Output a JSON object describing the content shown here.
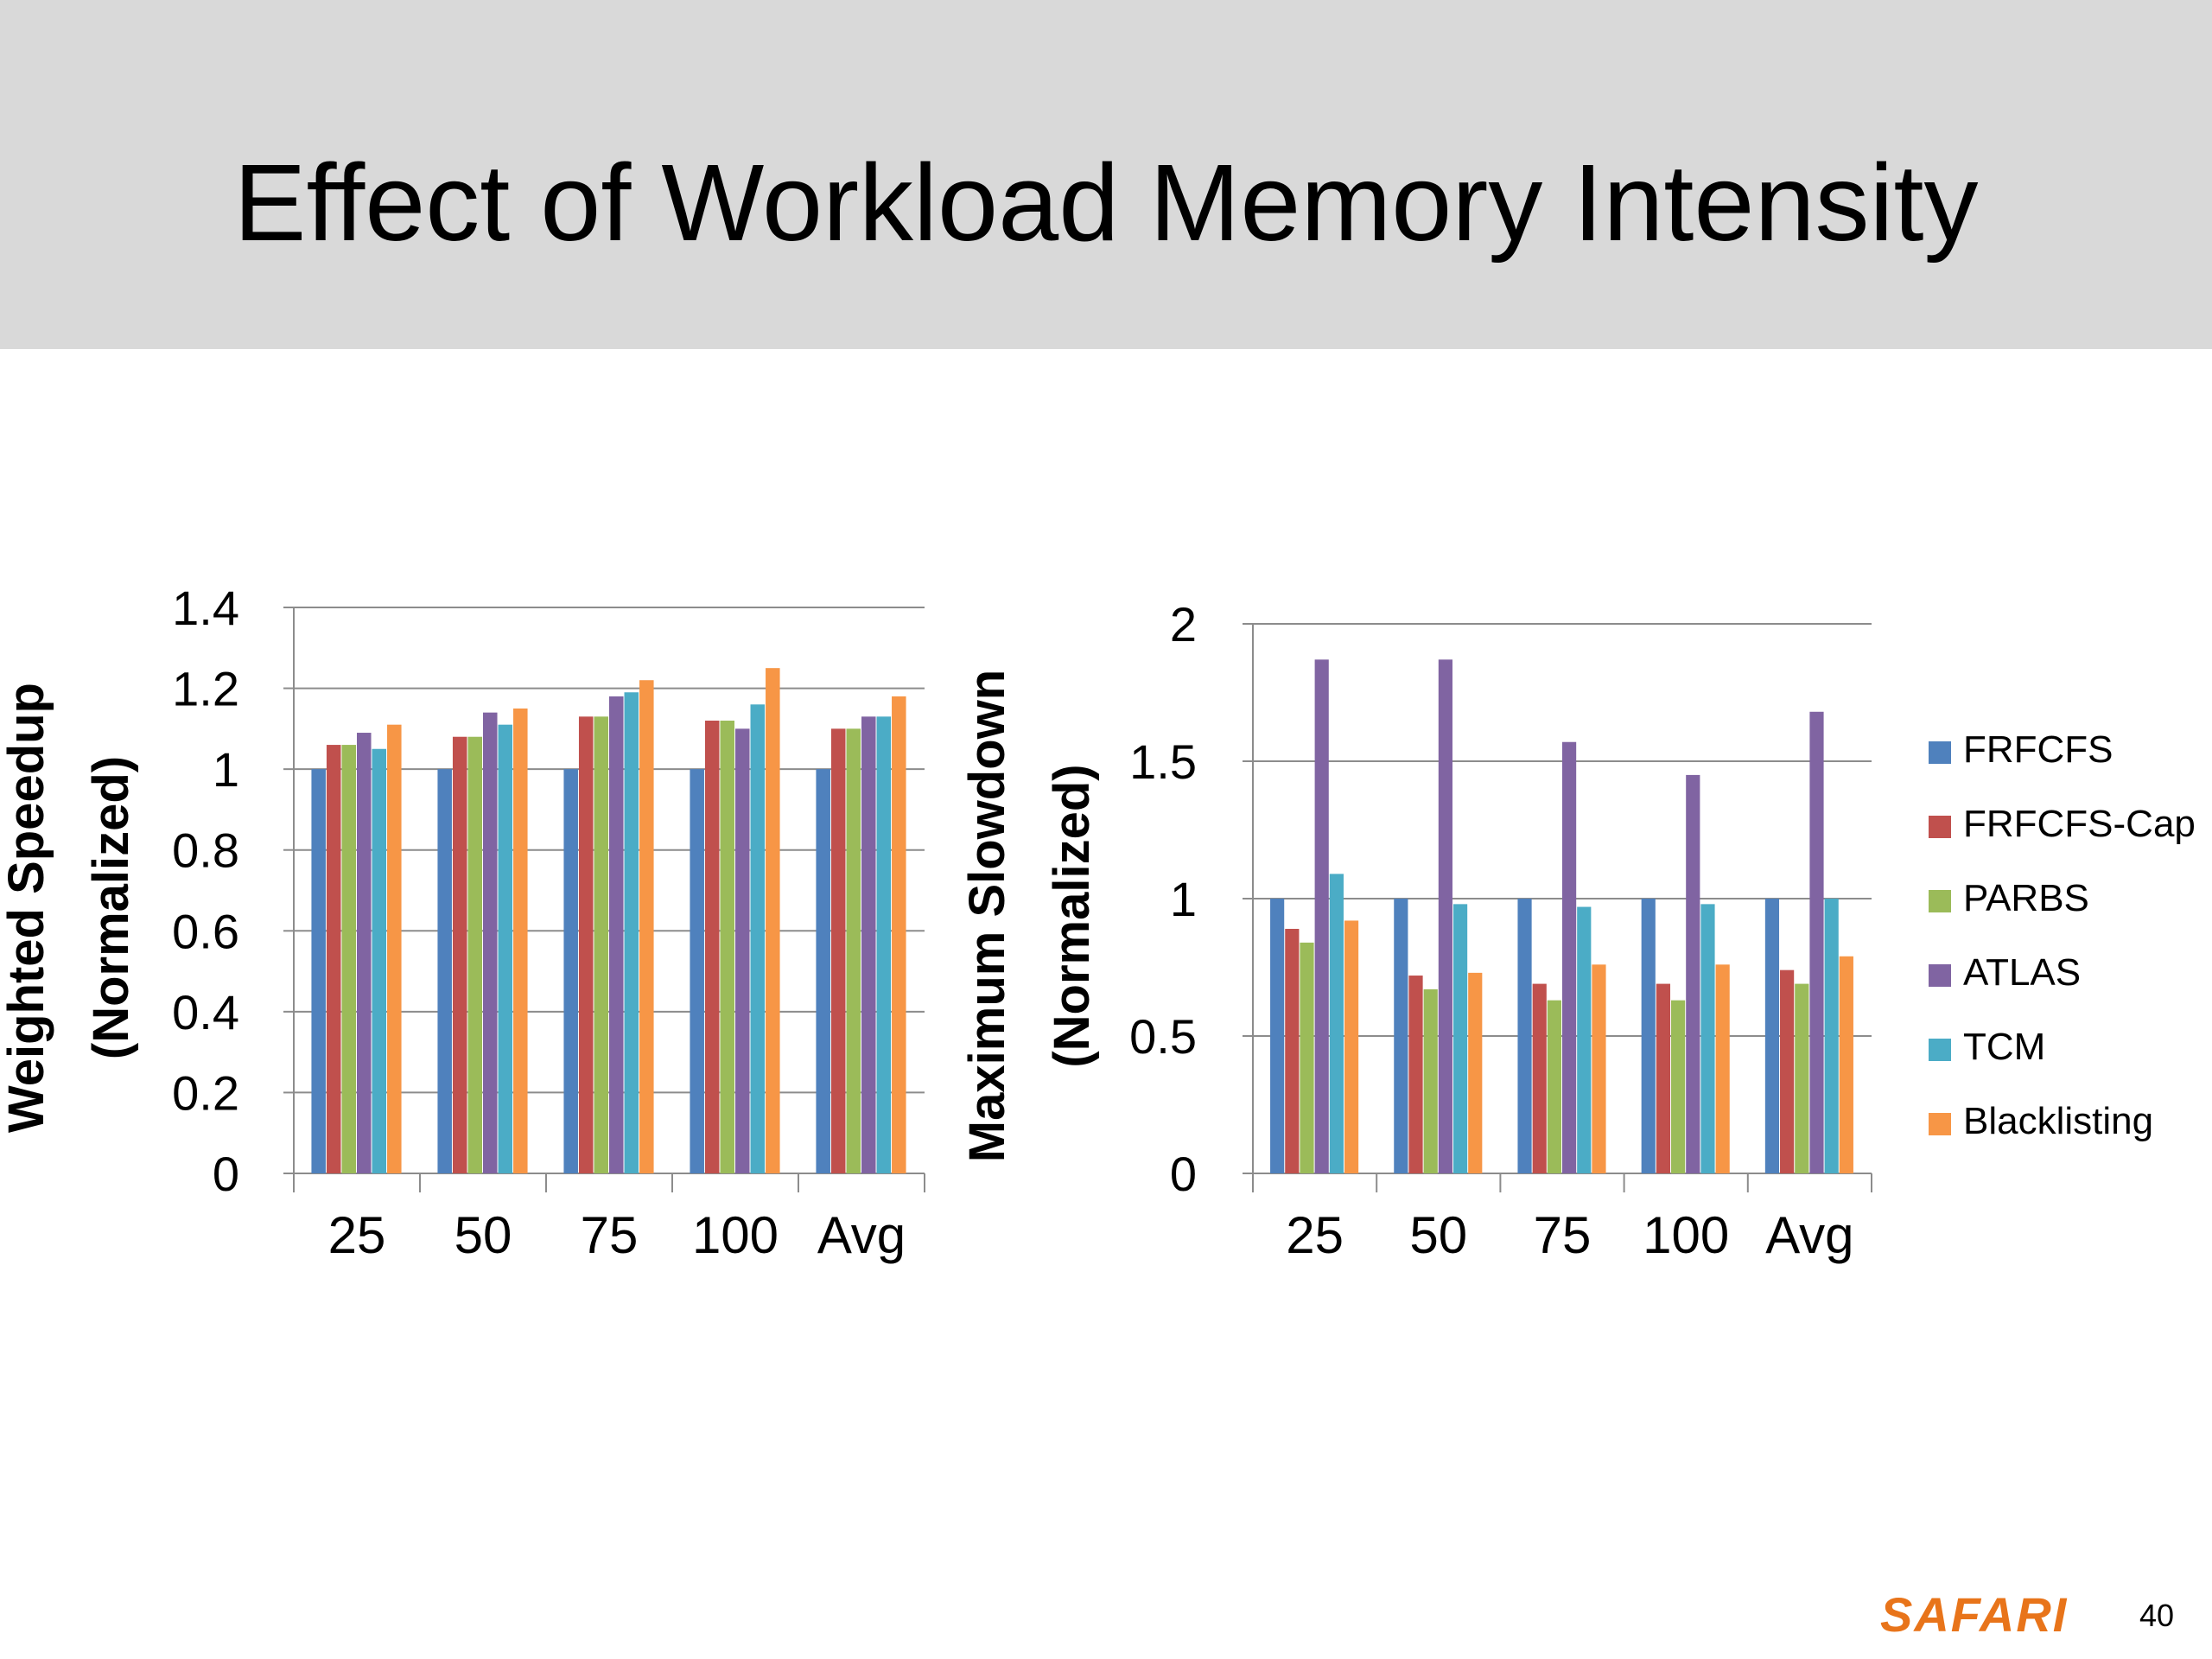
{
  "slide": {
    "title": "Effect of Workload Memory Intensity",
    "brand": "SAFARI",
    "page_number": "40"
  },
  "legend": [
    "FRFCFS",
    "FRFCFS-Cap",
    "PARBS",
    "ATLAS",
    "TCM",
    "Blacklisting"
  ],
  "colors": [
    "#4f81bd",
    "#c0504d",
    "#9bbb59",
    "#8064a2",
    "#4bacc6",
    "#f79646"
  ],
  "chart_data": [
    {
      "type": "bar",
      "title": "",
      "xlabel": "",
      "ylabel": [
        "Weighted Speedup",
        "(Normalized)"
      ],
      "categories": [
        "25",
        "50",
        "75",
        "100",
        "Avg"
      ],
      "ylim": [
        0,
        1.4
      ],
      "yticks": [
        "0",
        "0.2",
        "0.4",
        "0.6",
        "0.8",
        "1",
        "1.2",
        "1.4"
      ],
      "series": [
        {
          "name": "FRFCFS",
          "values": [
            1.0,
            1.0,
            1.0,
            1.0,
            1.0
          ]
        },
        {
          "name": "FRFCFS-Cap",
          "values": [
            1.06,
            1.08,
            1.13,
            1.12,
            1.1
          ]
        },
        {
          "name": "PARBS",
          "values": [
            1.06,
            1.08,
            1.13,
            1.12,
            1.1
          ]
        },
        {
          "name": "ATLAS",
          "values": [
            1.09,
            1.14,
            1.18,
            1.1,
            1.13
          ]
        },
        {
          "name": "TCM",
          "values": [
            1.05,
            1.11,
            1.19,
            1.16,
            1.13
          ]
        },
        {
          "name": "Blacklisting",
          "values": [
            1.11,
            1.15,
            1.22,
            1.25,
            1.18
          ]
        }
      ]
    },
    {
      "type": "bar",
      "title": "",
      "xlabel": "",
      "ylabel": [
        "Maximum Slowdown",
        "(Normalized)"
      ],
      "categories": [
        "25",
        "50",
        "75",
        "100",
        "Avg"
      ],
      "ylim": [
        0,
        2
      ],
      "yticks": [
        "0",
        "0.5",
        "1",
        "1.5",
        "2"
      ],
      "series": [
        {
          "name": "FRFCFS",
          "values": [
            1.0,
            1.0,
            1.0,
            1.0,
            1.0
          ]
        },
        {
          "name": "FRFCFS-Cap",
          "values": [
            0.89,
            0.72,
            0.69,
            0.69,
            0.74
          ]
        },
        {
          "name": "PARBS",
          "values": [
            0.84,
            0.67,
            0.63,
            0.63,
            0.69
          ]
        },
        {
          "name": "ATLAS",
          "values": [
            1.87,
            1.87,
            1.57,
            1.45,
            1.68
          ]
        },
        {
          "name": "TCM",
          "values": [
            1.09,
            0.98,
            0.97,
            0.98,
            1.0
          ]
        },
        {
          "name": "Blacklisting",
          "values": [
            0.92,
            0.73,
            0.76,
            0.76,
            0.79
          ]
        }
      ]
    }
  ]
}
